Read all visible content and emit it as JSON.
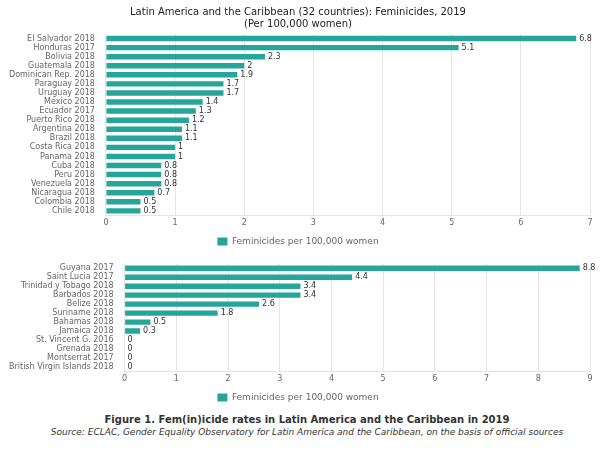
{
  "chart_data": [
    {
      "type": "bar",
      "orientation": "horizontal",
      "title": "Latin America and the Caribbean (32 countries): Feminicides, 2019\n(Per 100,000 women)",
      "categories": [
        "El Salvador 2018",
        "Honduras 2017",
        "Bolivia 2018",
        "Guatemala 2018",
        "Dominican Rep. 2018",
        "Paraguay 2018",
        "Uruguay 2018",
        "Mexico 2018",
        "Ecuador 2017",
        "Puerto Rico 2018",
        "Argentina 2018",
        "Brazil 2018",
        "Costa Rica 2018",
        "Panama 2018",
        "Cuba 2018",
        "Peru 2018",
        "Venezuela 2018",
        "Nicaragua 2018",
        "Colombia 2018",
        "Chile 2018"
      ],
      "series": [
        {
          "name": "Feminicides per 100,000 women",
          "color": "#26a69a",
          "values": [
            6.8,
            5.1,
            2.3,
            2.0,
            1.9,
            1.7,
            1.7,
            1.4,
            1.3,
            1.2,
            1.1,
            1.1,
            1.0,
            1.0,
            0.8,
            0.8,
            0.8,
            0.7,
            0.5,
            0.5
          ]
        }
      ],
      "xlim": [
        0,
        7
      ],
      "xticks": [
        0,
        1,
        2,
        3,
        4,
        5,
        6,
        7
      ],
      "grid": true,
      "legend": "bottom",
      "data_labels": true
    },
    {
      "type": "bar",
      "orientation": "horizontal",
      "categories": [
        "Guyana 2017",
        "Saint Lucia 2017",
        "Trinidad y Tobago 2018",
        "Barbados 2018",
        "Belize 2018",
        "Suriname 2018",
        "Bahamas 2018",
        "Jamaica 2018",
        "St. Vincent G. 2016",
        "Grenada 2018",
        "Montserrat 2017",
        "British Virgin Islands 2018"
      ],
      "series": [
        {
          "name": "Feminicides per 100,000 women",
          "color": "#26a69a",
          "values": [
            8.8,
            4.4,
            3.4,
            3.4,
            2.6,
            1.8,
            0.5,
            0.3,
            0,
            0,
            0,
            0
          ]
        }
      ],
      "xlim": [
        0,
        9
      ],
      "xticks": [
        0,
        1,
        2,
        3,
        4,
        5,
        6,
        7,
        8,
        9
      ],
      "grid": true,
      "legend": "bottom",
      "data_labels": true,
      "annotations": [
        "Figure 1. Fem(in)icide rates in Latin America and the Caribbean in 2019",
        "Source: ECLAC, Gender Equality Observatory for Latin America and the Caribbean, on the basis of official sources"
      ]
    }
  ]
}
